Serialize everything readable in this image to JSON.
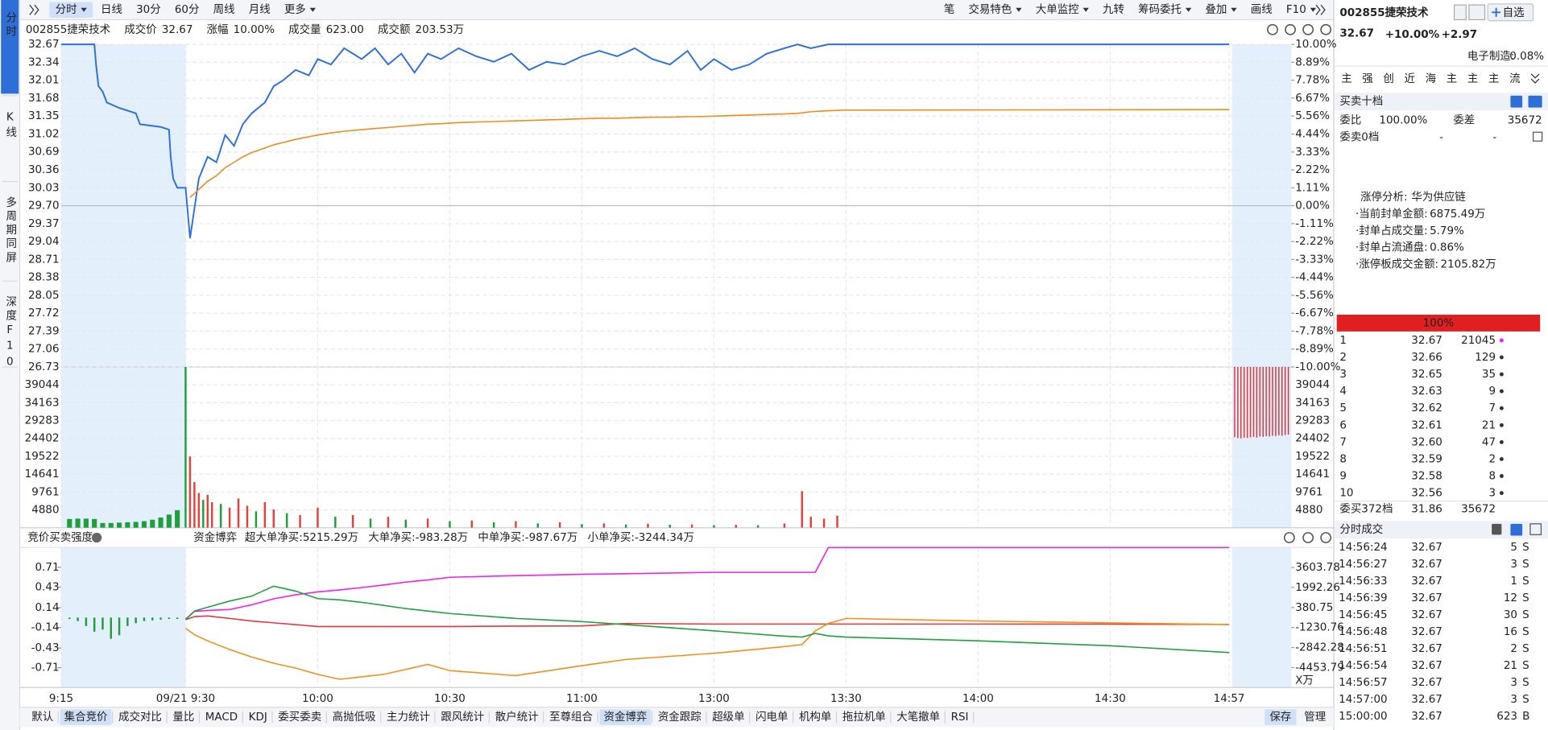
{
  "nav": {
    "tabs": [
      "分时",
      "K线",
      "多周期同屏",
      "深度F10"
    ],
    "active": 0
  },
  "toolbar": {
    "left": [
      "分时",
      "日线",
      "30分",
      "60分",
      "周线",
      "月线",
      "更多"
    ],
    "left_dropdown": [
      true,
      false,
      false,
      false,
      false,
      false,
      true
    ],
    "left_active": 0,
    "right": [
      "笔",
      "交易特色",
      "大单监控",
      "九转",
      "筹码委托",
      "叠加",
      "画线",
      "F10"
    ],
    "right_dropdown": [
      false,
      true,
      true,
      false,
      true,
      true,
      false,
      true
    ]
  },
  "quote": {
    "name": "002855捷荣技术",
    "price_label": "成交价",
    "price": "32.67",
    "change_label": "涨幅",
    "change": "10.00%",
    "volume_label": "成交量",
    "volume": "623.00",
    "amount_label": "成交额",
    "amount": "203.53万"
  },
  "chart_data": [
    {
      "type": "line",
      "ylim": [
        26.73,
        32.67
      ],
      "yticks": [
        32.67,
        32.34,
        32.01,
        31.68,
        31.35,
        31.02,
        30.69,
        30.36,
        30.03,
        {
          "value": 29.7,
          "label": "29.70"
        },
        29.37,
        29.04,
        28.71,
        28.38,
        28.05,
        27.72,
        27.39,
        27.06,
        26.73
      ],
      "y2lim": [
        -10,
        10
      ],
      "y2ticks": [
        {
          "value": 10,
          "label": "10.00%"
        },
        {
          "value": 8.89,
          "label": "8.89%"
        },
        {
          "value": 7.78,
          "label": "7.78%"
        },
        {
          "value": 6.67,
          "label": "6.67%"
        },
        {
          "value": 5.56,
          "label": "5.56%"
        },
        {
          "value": 4.44,
          "label": "4.44%"
        },
        {
          "value": 3.33,
          "label": "3.33%"
        },
        {
          "value": 2.22,
          "label": "2.22%"
        },
        {
          "value": 1.11,
          "label": "1.11%"
        },
        {
          "value": 0,
          "label": "0.00%"
        },
        {
          "value": -1.11,
          "label": "-1.11%"
        },
        {
          "value": -2.22,
          "label": "-2.22%"
        },
        {
          "value": -3.33,
          "label": "-3.33%"
        },
        {
          "value": -4.44,
          "label": "-4.44%"
        },
        {
          "value": -5.56,
          "label": "-5.56%"
        },
        {
          "value": -6.67,
          "label": "-6.67%"
        },
        {
          "value": -7.78,
          "label": "-7.78%"
        },
        {
          "value": -8.89,
          "label": "-8.89%"
        },
        {
          "value": -10,
          "label": "-10.00%"
        }
      ],
      "grid": true,
      "x": [
        -15,
        -11,
        -10.8,
        -10.5,
        -10,
        -9.5,
        -8,
        -6,
        -5.5,
        -3,
        -2,
        -1.8,
        -1.5,
        -1,
        0,
        1,
        3,
        5,
        7,
        9,
        11,
        13,
        15,
        18,
        20,
        22,
        25,
        28,
        30,
        33,
        36,
        40,
        43,
        46,
        49,
        52,
        55,
        58,
        62,
        66,
        70,
        74,
        78,
        82,
        86,
        90,
        94,
        98,
        102,
        106,
        110,
        114,
        117,
        120,
        124,
        128,
        132,
        136,
        139,
        142,
        146,
        150,
        237
      ],
      "series": [
        {
          "color": "#2f6fde",
          "values": [
            32.67,
            32.67,
            32.3,
            31.9,
            31.8,
            31.6,
            31.5,
            31.4,
            31.2,
            31.15,
            31.1,
            30.6,
            30.2,
            30.03,
            30.03,
            29.1,
            30.2,
            30.6,
            30.5,
            31.0,
            30.8,
            31.2,
            31.4,
            31.6,
            31.9,
            32.0,
            32.2,
            32.1,
            32.4,
            32.3,
            32.6,
            32.4,
            32.6,
            32.3,
            32.5,
            32.15,
            32.5,
            32.4,
            32.6,
            32.45,
            32.35,
            32.5,
            32.2,
            32.35,
            32.3,
            32.45,
            32.55,
            32.45,
            32.6,
            32.4,
            32.3,
            32.55,
            32.2,
            32.4,
            32.2,
            32.3,
            32.5,
            32.6,
            32.67,
            32.6,
            32.67,
            32.67,
            32.67
          ]
        },
        {
          "color": "#f08c1e",
          "values": [
            null,
            null,
            null,
            null,
            null,
            null,
            null,
            null,
            null,
            null,
            null,
            null,
            null,
            null,
            null,
            29.85,
            30.0,
            30.15,
            30.25,
            30.4,
            30.5,
            30.6,
            30.68,
            30.76,
            30.82,
            30.86,
            30.92,
            30.97,
            31.0,
            31.04,
            31.07,
            31.1,
            31.12,
            31.14,
            31.16,
            31.18,
            31.2,
            31.21,
            31.23,
            31.24,
            31.25,
            31.26,
            31.27,
            31.28,
            31.29,
            31.3,
            31.31,
            31.31,
            31.32,
            31.33,
            31.33,
            31.34,
            31.34,
            31.35,
            31.36,
            31.37,
            31.38,
            31.39,
            31.4,
            31.43,
            31.45,
            31.46,
            31.47
          ]
        }
      ]
    },
    {
      "type": "bar",
      "ylim": [
        0,
        43925
      ],
      "yticks": [
        39044,
        34163,
        29283,
        24402,
        19522,
        14641,
        9761,
        4880
      ],
      "x": [
        -14,
        -13,
        -12,
        -11,
        -10,
        -9,
        -8,
        -7,
        -6,
        -5,
        -4,
        -3,
        -2,
        -1,
        0,
        1,
        2,
        3,
        4,
        5,
        6,
        8,
        10,
        12,
        14,
        16,
        18,
        20,
        23,
        26,
        30,
        34,
        38,
        42,
        46,
        50,
        55,
        60,
        65,
        70,
        75,
        80,
        85,
        90,
        95,
        100,
        105,
        110,
        115,
        120,
        125,
        130,
        136,
        140,
        142,
        145,
        148
      ],
      "values": [
        2400,
        2500,
        2500,
        2400,
        1300,
        1300,
        1400,
        1500,
        1600,
        1800,
        2200,
        2800,
        3600,
        4800,
        45000,
        19522,
        12500,
        9500,
        7600,
        9000,
        7000,
        6500,
        5500,
        8000,
        6000,
        4500,
        7000,
        5000,
        4000,
        3500,
        5500,
        3000,
        3500,
        2500,
        3000,
        2200,
        2500,
        1800,
        2000,
        1500,
        1800,
        1200,
        1500,
        1000,
        1200,
        900,
        1100,
        800,
        900,
        700,
        800,
        700,
        1200,
        10000,
        3000,
        2500,
        3300
      ],
      "colors": [
        "#1f9e3c",
        "#1f9e3c",
        "#1f9e3c",
        "#1f9e3c",
        "#1f9e3c",
        "#1f9e3c",
        "#1f9e3c",
        "#1f9e3c",
        "#1f9e3c",
        "#1f9e3c",
        "#1f9e3c",
        "#1f9e3c",
        "#1f9e3c",
        "#1f9e3c",
        "#1f9e3c",
        "#e8413c",
        "#e8413c",
        "#e8413c",
        "#1f9e3c",
        "#e8413c",
        "#e8413c",
        "#1f9e3c",
        "#e8413c",
        "#e8413c",
        "#e8413c",
        "#1f9e3c",
        "#e8413c",
        "#e8413c",
        "#1f9e3c",
        "#e8413c",
        "#e8413c",
        "#1f9e3c",
        "#e8413c",
        "#1f9e3c",
        "#e8413c",
        "#1f9e3c",
        "#e8413c",
        "#1f9e3c",
        "#e8413c",
        "#1f9e3c",
        "#e8413c",
        "#1f9e3c",
        "#e8413c",
        "#1f9e3c",
        "#e8413c",
        "#1f9e3c",
        "#e8413c",
        "#1f9e3c",
        "#e8413c",
        "#1f9e3c",
        "#e8413c",
        "#1f9e3c",
        "#e8413c",
        "#e8413c",
        "#e8413c",
        "#e8413c",
        "#e8413c"
      ],
      "closing_values": [
        19200,
        19400,
        19500,
        19300,
        19400,
        19200,
        19100,
        19300,
        19000,
        19100,
        18900,
        19000,
        18800,
        18900,
        18700,
        18800,
        18600,
        18500
      ],
      "closing_color": "#d9363a"
    },
    {
      "type": "line",
      "title": "竞价买卖强度",
      "subtitle": "资金博弈",
      "ylim": [
        -0.99,
        0.99
      ],
      "yticks": [
        0.71,
        0.43,
        0.14,
        -0.14,
        -0.43,
        -0.71
      ],
      "y2lim": [
        -6065,
        5215
      ],
      "y2ticks": [
        3603.78,
        1992.26,
        380.75,
        -1230.76,
        -2842.28,
        -4453.79
      ],
      "y2label": "X万",
      "xlim": [
        -15,
        237
      ],
      "xticks": [
        {
          "value": -15,
          "label": "9:15"
        },
        {
          "value": 0,
          "label": "09/21 9:30"
        },
        {
          "value": 30,
          "label": "10:00"
        },
        {
          "value": 60,
          "label": "10:30"
        },
        {
          "value": 90,
          "label": "11:00"
        },
        {
          "value": 120,
          "label": "13:00"
        },
        {
          "value": 150,
          "label": "13:30"
        },
        {
          "value": 180,
          "label": "14:00"
        },
        {
          "value": 210,
          "label": "14:30"
        },
        {
          "value": 237,
          "label": "14:57"
        }
      ],
      "x": [
        0,
        2,
        5,
        10,
        15,
        20,
        25,
        30,
        35,
        40,
        45,
        50,
        55,
        60,
        75,
        90,
        100,
        120,
        135,
        140,
        143,
        146,
        150,
        180,
        210,
        237
      ],
      "series": [
        {
          "name": "超大单净买:5215.29万",
          "color": "#f020f0",
          "axis": "y2",
          "values": [
            -563,
            66,
            150,
            220,
            600,
            1088,
            1400,
            1638,
            1800,
            1992,
            2200,
            2424,
            2600,
            2817,
            2950,
            3053,
            3100,
            3210,
            3210,
            3210,
            3210,
            5215,
            5215,
            5215,
            5215,
            5215
          ]
        },
        {
          "name": "大单净买:-983.28万",
          "color": "#e0393e",
          "axis": "y2",
          "values": [
            -600,
            -350,
            -300,
            -500,
            -700,
            -850,
            -1000,
            -1150,
            -1150,
            -1150,
            -1150,
            -1150,
            -1150,
            -1150,
            -1120,
            -1100,
            -900,
            -950,
            -950,
            -950,
            -950,
            -950,
            -950,
            -950,
            -960,
            -983
          ]
        },
        {
          "name": "中单净买:-987.67万",
          "color": "#f0901e",
          "axis": "y2",
          "values": [
            -1300,
            -1800,
            -2300,
            -3000,
            -3600,
            -4100,
            -4500,
            -5000,
            -5400,
            -5200,
            -5000,
            -4600,
            -4200,
            -4700,
            -5100,
            -4300,
            -3800,
            -3300,
            -2800,
            -2600,
            -1500,
            -900,
            -500,
            -700,
            -850,
            -988
          ]
        },
        {
          "name": "小单净买:-3244.34万",
          "color": "#20a040",
          "axis": "y2",
          "values": [
            -600,
            100,
            400,
            900,
            1300,
            2100,
            1700,
            1100,
            1000,
            800,
            550,
            300,
            100,
            -100,
            -500,
            -750,
            -1000,
            -1500,
            -1900,
            -2000,
            -1700,
            -1900,
            -2000,
            -2300,
            -2700,
            -3244
          ]
        }
      ],
      "auction_x": [
        -14,
        -13,
        -12,
        -11,
        -10,
        -9,
        -8,
        -7,
        -6,
        -5,
        -4,
        -3,
        -2,
        -1
      ],
      "auction_values": [
        -0.02,
        -0.05,
        -0.12,
        -0.2,
        -0.17,
        -0.3,
        -0.25,
        -0.12,
        -0.08,
        -0.05,
        -0.04,
        -0.03,
        -0.02,
        -0.02
      ],
      "auction_color": "#1f9e3c"
    }
  ],
  "stock": {
    "name": "002855捷荣技术",
    "button": "自选",
    "price": "32.67",
    "change_pct": "+10.00%",
    "change": "+2.97",
    "sector": "电子制造:",
    "sector_change": "0.08%",
    "shortcuts": [
      "主",
      "强",
      "创",
      "近",
      "海",
      "主",
      "主",
      "主",
      "流"
    ]
  },
  "order_book": {
    "title": "买卖十档",
    "ratio_label": "委比",
    "ratio": "100.00%",
    "diff_label": "委差",
    "diff": "35672",
    "sell_label": "委卖0档",
    "sell_price": "-",
    "sell_volume": "-",
    "limit_title": "涨停分析:",
    "limit_reason": "华为供应链",
    "limit_stats": [
      [
        "·当前封单金额:",
        "6875.49万"
      ],
      [
        "·封单占成交量:",
        "5.79%"
      ],
      [
        "·封单占流通盘:",
        "0.86%"
      ],
      [
        "·涨停板成交金额:",
        "2105.82万"
      ]
    ],
    "buy_ratio": "100%",
    "bids": [
      [
        "1",
        "32.67",
        "21045"
      ],
      [
        "2",
        "32.66",
        "129"
      ],
      [
        "3",
        "32.65",
        "35"
      ],
      [
        "4",
        "32.63",
        "9"
      ],
      [
        "5",
        "32.62",
        "7"
      ],
      [
        "6",
        "32.61",
        "21"
      ],
      [
        "7",
        "32.60",
        "47"
      ],
      [
        "8",
        "32.59",
        "2"
      ],
      [
        "9",
        "32.58",
        "8"
      ],
      [
        "10",
        "32.56",
        "3"
      ]
    ],
    "buy_total_label": "委买372档",
    "buy_total_price": "31.86",
    "buy_total_volume": "35672"
  },
  "trades": {
    "title": "分时成交",
    "rows": [
      [
        "14:56:24",
        "32.67",
        "5",
        "S"
      ],
      [
        "14:56:27",
        "32.67",
        "3",
        "S"
      ],
      [
        "14:56:33",
        "32.67",
        "1",
        "S"
      ],
      [
        "14:56:39",
        "32.67",
        "12",
        "S"
      ],
      [
        "14:56:45",
        "32.67",
        "30",
        "S"
      ],
      [
        "14:56:48",
        "32.67",
        "16",
        "S"
      ],
      [
        "14:56:51",
        "32.67",
        "2",
        "S"
      ],
      [
        "14:56:54",
        "32.67",
        "21",
        "S"
      ],
      [
        "14:56:57",
        "32.67",
        "3",
        "S"
      ],
      [
        "14:57:00",
        "32.67",
        "3",
        "S"
      ],
      [
        "15:00:00",
        "32.67",
        "623",
        "B"
      ]
    ],
    "flag_colors": [
      "#1f9e3c",
      "#1f9e3c",
      "#1f9e3c",
      "#1f9e3c",
      "#1f9e3c",
      "#1f9e3c",
      "#1f9e3c",
      "#1f9e3c",
      "#1f9e3c",
      "#1f9e3c",
      "#e8413c"
    ]
  },
  "bottom_tabs": {
    "items": [
      "默认",
      "集合竞价",
      "成交对比",
      "量比",
      "MACD",
      "KDJ",
      "委买委卖",
      "高抛低吸",
      "主力统计",
      "跟风统计",
      "散户统计",
      "至尊组合",
      "资金博弈",
      "资金跟踪",
      "超级单",
      "闪电单",
      "机构单",
      "拖拉机单",
      "大笔撤单",
      "RSI"
    ],
    "active": [
      1,
      12
    ],
    "actions": [
      "保存",
      "管理"
    ]
  }
}
